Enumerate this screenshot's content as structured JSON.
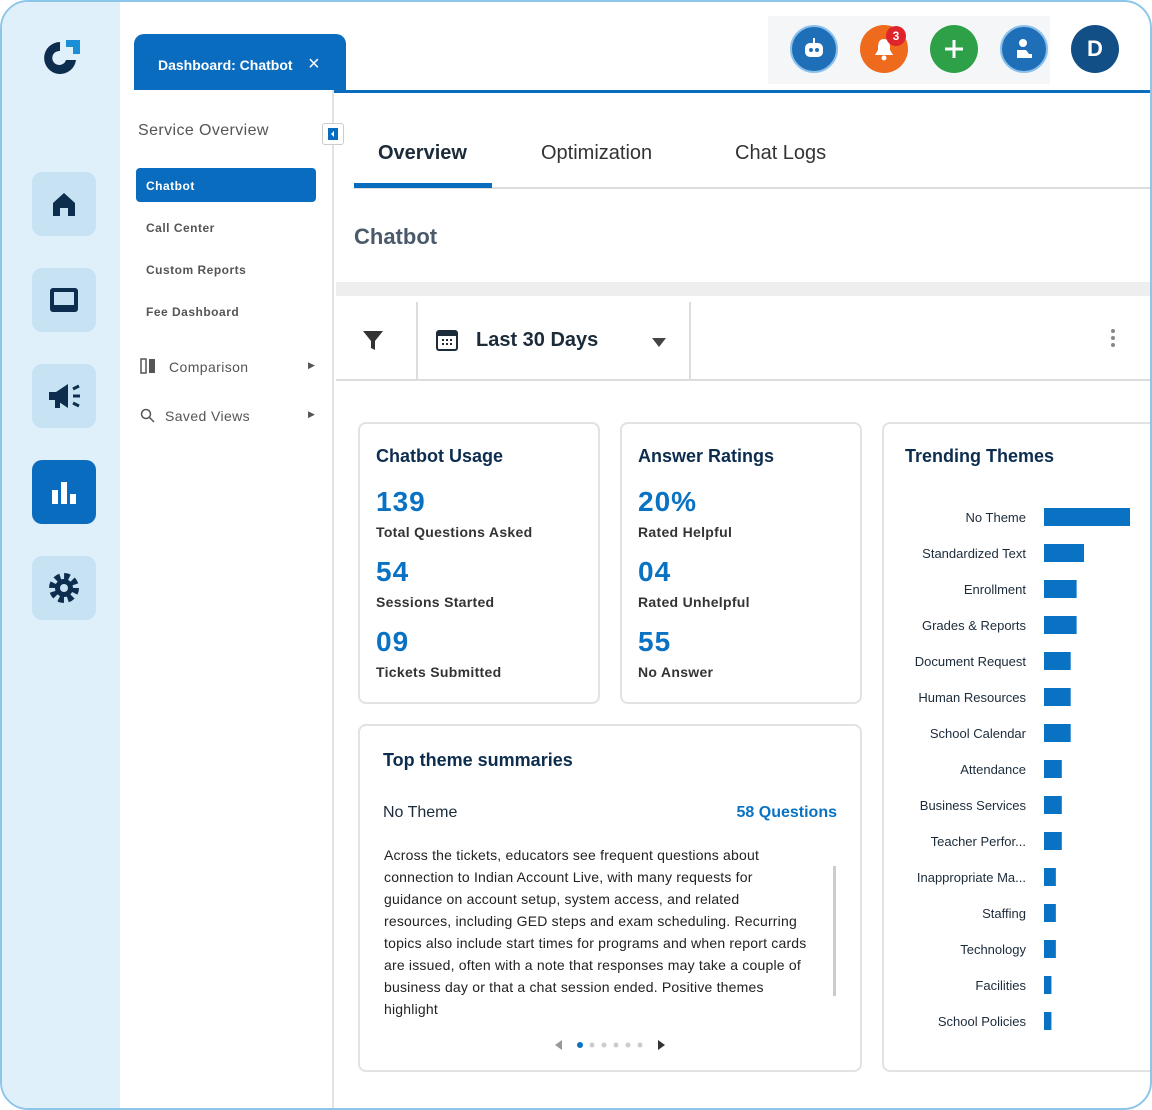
{
  "header": {
    "tab": "Dashboard: Chatbot",
    "notification_count": "3",
    "avatar": "D"
  },
  "sidebar": {
    "title": "Service Overview",
    "items": [
      "Chatbot",
      "Call Center",
      "Custom Reports",
      "Fee Dashboard"
    ],
    "groups": [
      "Comparison",
      "Saved Views"
    ]
  },
  "tabs": [
    "Overview",
    "Optimization",
    "Chat Logs"
  ],
  "page_title": "Chatbot",
  "filter": {
    "range": "Last 30 Days"
  },
  "cards": [
    {
      "title": "Chatbot Usage",
      "metrics": [
        {
          "value": "139",
          "label": "Total Questions Asked"
        },
        {
          "value": "54",
          "label": "Sessions Started"
        },
        {
          "value": "09",
          "label": "Tickets Submitted"
        }
      ]
    },
    {
      "title": "Answer Ratings",
      "metrics": [
        {
          "value": "20%",
          "label": "Rated Helpful"
        },
        {
          "value": "04",
          "label": "Rated Unhelpful"
        },
        {
          "value": "55",
          "label": "No Answer"
        }
      ]
    }
  ],
  "summary": {
    "title": "Top theme summaries",
    "theme": "No Theme",
    "count": "58 Questions",
    "text": "Across the tickets, educators see frequent questions about connection to Indian Account Live, with many requests for guidance on account setup, system access, and related resources, including GED steps and exam scheduling. Recurring topics also include start times for programs and when report cards are issued, often with a note that responses may take a couple of business day or that a chat session ended. Positive themes highlight"
  },
  "chart_data": {
    "type": "bar",
    "title": "Trending Themes",
    "color": "#0a72c2",
    "categories": [
      "No Theme",
      "Standardized Text",
      "Enrollment",
      "Grades & Reports",
      "Document Request",
      "Human Resources",
      "School Calendar",
      "Attendance",
      "Business Services",
      "Teacher Perfor...",
      "Inappropriate Ma...",
      "Staffing",
      "Technology",
      "Facilities",
      "School Policies"
    ],
    "values": [
      58,
      27,
      22,
      22,
      18,
      18,
      18,
      12,
      12,
      12,
      8,
      8,
      8,
      5,
      5
    ]
  }
}
